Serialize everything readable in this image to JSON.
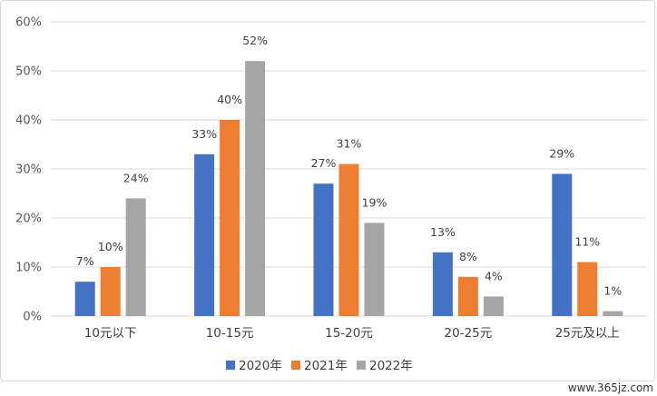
{
  "chart_data": {
    "type": "bar",
    "categories": [
      "10元以下",
      "10-15元",
      "15-20元",
      "20-25元",
      "25元及以上"
    ],
    "series": [
      {
        "name": "2020年",
        "values": [
          7,
          33,
          27,
          13,
          29
        ],
        "labels": [
          "7%",
          "33%",
          "27%",
          "13%",
          "29%"
        ],
        "color": "#4472c4"
      },
      {
        "name": "2021年",
        "values": [
          10,
          40,
          31,
          8,
          11
        ],
        "labels": [
          "10%",
          "40%",
          "31%",
          "8%",
          "11%"
        ],
        "color": "#ed7d31"
      },
      {
        "name": "2022年",
        "values": [
          24,
          52,
          19,
          4,
          1
        ],
        "labels": [
          "24%",
          "52%",
          "19%",
          "4%",
          "1%"
        ],
        "color": "#a5a5a5"
      }
    ],
    "yticks": [
      "0%",
      "10%",
      "20%",
      "30%",
      "40%",
      "50%",
      "60%"
    ],
    "ylim": [
      0,
      60
    ],
    "grid": true,
    "legend": "bottom",
    "gridline_color": "#d9d9d9"
  },
  "watermark": "www.365jz.com"
}
